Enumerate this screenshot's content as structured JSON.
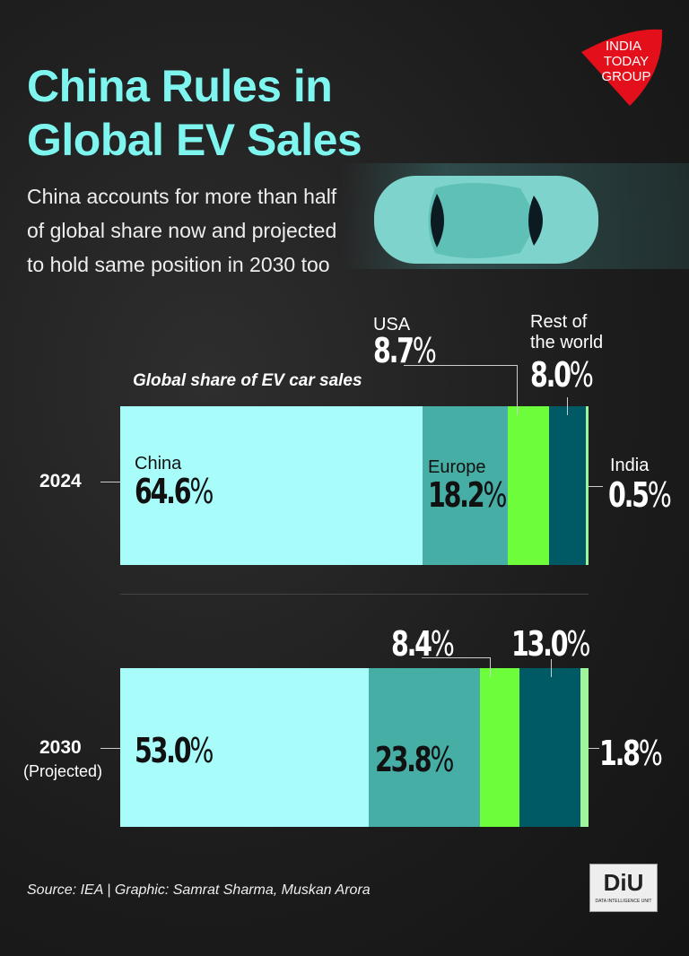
{
  "header": {
    "title": "China Rules in Global EV Sales",
    "subtitle": "China accounts for more than half of global share now and projected to hold same position in 2030 too",
    "logo": "INDIA TODAY GROUP"
  },
  "chart_data": {
    "type": "bar",
    "stacked": true,
    "orientation": "horizontal",
    "title": "Global share of EV car sales",
    "categories": [
      "2024",
      "2030 (Projected)"
    ],
    "category_labels": {
      "y2024": "2024",
      "y2030": "2030",
      "projected": "(Projected)"
    },
    "series": [
      {
        "name": "China",
        "values": [
          64.6,
          53.0
        ],
        "color": "#a8fdfb"
      },
      {
        "name": "Europe",
        "values": [
          18.2,
          23.8
        ],
        "color": "#47aea6"
      },
      {
        "name": "USA",
        "values": [
          8.7,
          8.4
        ],
        "color": "#6dfd3b"
      },
      {
        "name": "Rest of the world",
        "values": [
          8.0,
          13.0
        ],
        "color": "#005a66"
      },
      {
        "name": "India",
        "values": [
          0.5,
          1.8
        ],
        "color": "#a0f59a"
      }
    ],
    "labels": {
      "china": "China",
      "europe": "Europe",
      "usa": "USA",
      "row1": "Rest of",
      "row2": "the world",
      "india": "India",
      "v2024": [
        "64.6",
        "18.2",
        "8.7",
        "8.0",
        "0.5"
      ],
      "v2030": [
        "53.0",
        "23.8",
        "8.4",
        "13.0",
        "1.8"
      ],
      "pct": "%"
    }
  },
  "footer": {
    "source": "Source: IEA | Graphic: Samrat Sharma, Muskan Arora",
    "diu": "DiU",
    "diu_sub": "DATA INTELLIGENCE UNIT"
  }
}
